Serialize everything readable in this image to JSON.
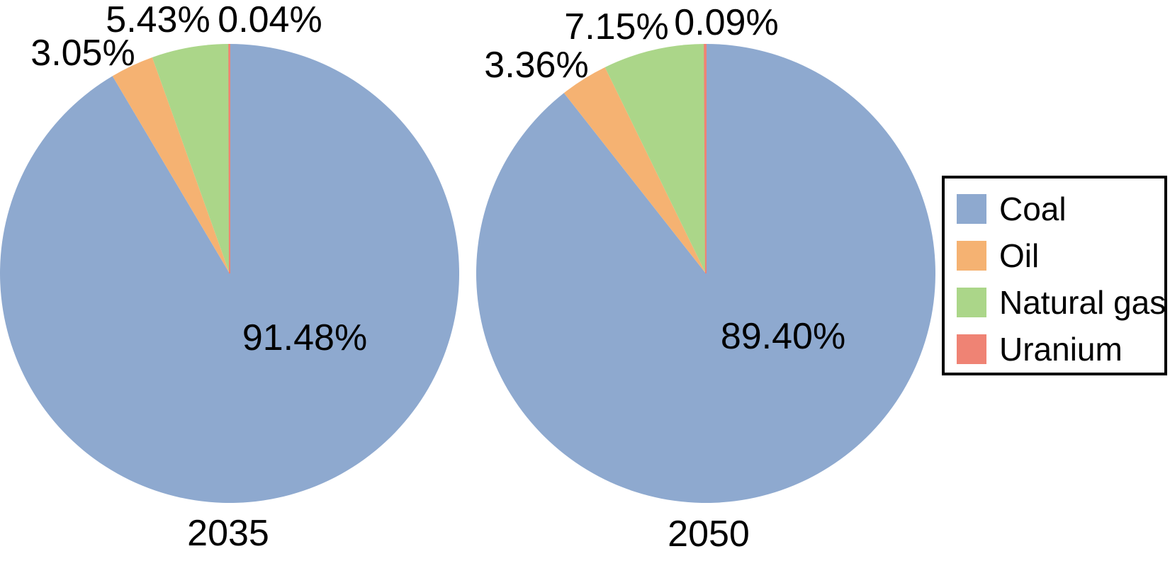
{
  "background_color": "#ffffff",
  "text_color": "#000000",
  "chart_data": {
    "type": "pie",
    "direction": "clockwise",
    "start_angle_deg": 0,
    "categories": [
      "Coal",
      "Oil",
      "Natural gas",
      "Uranium"
    ],
    "colors": [
      "#8EA9CF",
      "#F5B272",
      "#ABD689",
      "#EF8374"
    ],
    "legend": {
      "position": "right",
      "border_color": "#000000",
      "entries": [
        "Coal",
        "Oil",
        "Natural gas",
        "Uranium"
      ]
    },
    "pies": [
      {
        "title": "2035",
        "values": [
          91.48,
          3.05,
          5.43,
          0.04
        ],
        "slice_labels": {
          "coal": "91.48%",
          "oil": "3.05%",
          "natural_gas": "5.43%",
          "uranium": "0.04%"
        }
      },
      {
        "title": "2050",
        "values": [
          89.4,
          3.36,
          7.15,
          0.09
        ],
        "slice_labels": {
          "coal": "89.40%",
          "oil": "3.36%",
          "natural_gas": "7.15%",
          "uranium": "0.09%"
        }
      }
    ]
  }
}
